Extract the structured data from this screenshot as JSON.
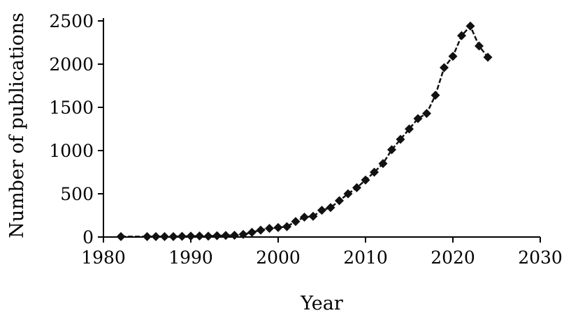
{
  "chart_data": {
    "type": "line",
    "xlabel": "Year",
    "ylabel": "Number of publications",
    "xlim": [
      1980,
      2030
    ],
    "ylim": [
      0,
      2500
    ],
    "xticks": [
      1980,
      1990,
      2000,
      2010,
      2020,
      2030
    ],
    "yticks": [
      0,
      500,
      1000,
      1500,
      2000,
      2500
    ],
    "grid": false,
    "legend": "none",
    "marker": "diamond",
    "colors": {
      "series": "#111111",
      "axis": "#000000"
    },
    "series": [
      {
        "x": [
          1982,
          1985,
          1986,
          1987,
          1988,
          1989,
          1990,
          1991,
          1992,
          1993,
          1994,
          1995,
          1996,
          1997,
          1998,
          1999,
          2000,
          2001,
          2002,
          2003,
          2004,
          2005,
          2006,
          2007,
          2008,
          2009,
          2010,
          2011,
          2012,
          2013,
          2014,
          2015,
          2016,
          2017,
          2018,
          2019,
          2020,
          2021,
          2022,
          2023,
          2024
        ],
        "values": [
          5,
          5,
          5,
          5,
          5,
          8,
          10,
          12,
          10,
          15,
          18,
          20,
          30,
          55,
          80,
          100,
          110,
          120,
          180,
          230,
          240,
          310,
          340,
          420,
          500,
          570,
          660,
          750,
          850,
          1010,
          1130,
          1250,
          1370,
          1430,
          1640,
          1960,
          2090,
          2330,
          2440,
          2210,
          2080
        ]
      }
    ]
  }
}
